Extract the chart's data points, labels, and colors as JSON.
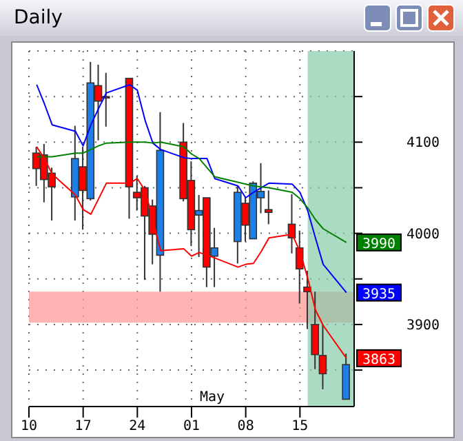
{
  "chart_data": {
    "type": "candlestick",
    "title": "Daily",
    "x": [
      "--04-11",
      "--04-12",
      "--04-13",
      "--04-16",
      "--04-17",
      "--04-18",
      "--04-19",
      "--04-20",
      "--04-23",
      "--04-24",
      "--04-25",
      "--04-26",
      "--04-27",
      "--04-30",
      "--05-01",
      "--05-02",
      "--05-03",
      "--05-04",
      "--05-07",
      "--05-08",
      "--05-09",
      "--05-10",
      "--05-11",
      "--05-14",
      "--05-15",
      "--05-16",
      "--05-17",
      "--05-18",
      "--05-21"
    ],
    "ohlc": [
      [
        4088,
        4095,
        4052,
        4071
      ],
      [
        4086,
        4098,
        4034,
        4059
      ],
      [
        4066,
        4072,
        4014,
        4051
      ],
      [
        4040,
        4118,
        4014,
        4082
      ],
      [
        4073,
        4095,
        4004,
        4047
      ],
      [
        4038,
        4188,
        4036,
        4165
      ],
      [
        4162,
        4185,
        4102,
        4145
      ],
      [
        4150,
        4176,
        4117,
        4150
      ],
      [
        4170,
        4170,
        4016,
        4051
      ],
      [
        4045,
        4063,
        4025,
        4039
      ],
      [
        4050,
        4052,
        3949,
        4019
      ],
      [
        4030,
        4037,
        3966,
        3999
      ],
      [
        3976,
        4133,
        3936,
        4091
      ],
      [
        4100,
        4121,
        4035,
        4038
      ],
      [
        4058,
        4079,
        3986,
        4004
      ],
      [
        4020,
        4042,
        3974,
        4025
      ],
      [
        4039,
        4039,
        3941,
        3963
      ],
      [
        3975,
        4006,
        3941,
        3984
      ],
      [
        3991,
        4052,
        3967,
        4045
      ],
      [
        4033,
        4040,
        3991,
        4009
      ],
      [
        3994,
        4057,
        3994,
        4055
      ],
      [
        4039,
        4077,
        4022,
        4046
      ],
      [
        4026,
        4047,
        4010,
        4023
      ],
      [
        4010,
        4043,
        3978,
        3995
      ],
      [
        3984,
        4003,
        3923,
        3961
      ],
      [
        3941,
        3959,
        3895,
        3936
      ],
      [
        3900,
        3936,
        3851,
        3867
      ],
      [
        3866,
        3900,
        3829,
        3846
      ],
      [
        3818,
        3868,
        3818,
        3856
      ]
    ],
    "colors": [
      "#ff0000",
      "#ff0000",
      "#ff0000",
      "#1e7fe8",
      "#ff0000",
      "#1e7fe8",
      "#ff0000",
      "#ff0000",
      "#ff0000",
      "#ff0000",
      "#ff0000",
      "#ff0000",
      "#1e7fe8",
      "#ff0000",
      "#ff0000",
      "#1e7fe8",
      "#ff0000",
      "#1e7fe8",
      "#1e7fe8",
      "#ff0000",
      "#1e7fe8",
      "#1e7fe8",
      "#ff0000",
      "#ff0000",
      "#ff0000",
      "#ff0000",
      "#ff0000",
      "#ff0000",
      "#1e7fe8"
    ],
    "series": [
      {
        "type": "line",
        "color": "#0000ff",
        "values": [
          4163,
          4142,
          4119,
          4112,
          4096,
          4119,
          4137,
          4154,
          4163,
          4157,
          4124,
          4099,
          4092,
          4083,
          4082,
          4082,
          4082,
          4060,
          4052,
          4039,
          4045,
          4050,
          4055,
          4054,
          4045,
          4025,
          3995,
          3966,
          3935
        ],
        "value_labels": [
          null,
          null,
          null,
          null,
          null,
          null,
          null,
          null,
          null,
          null,
          null,
          null,
          null,
          null,
          null,
          null,
          null,
          null,
          null,
          null,
          null,
          null,
          null,
          null,
          null,
          null,
          null,
          null,
          "3935"
        ]
      },
      {
        "type": "line",
        "color": "#008000",
        "values": [
          4084,
          4084,
          4084,
          4088,
          4088,
          4092,
          4096,
          4099,
          4100,
          4100,
          4100,
          4099,
          4100,
          4095,
          4087,
          4082,
          4072,
          4062,
          4056,
          4054,
          4052,
          4051,
          4050,
          4045,
          4038,
          4028,
          4015,
          4005,
          3990
        ],
        "value_labels": [
          null,
          null,
          null,
          null,
          null,
          null,
          null,
          null,
          null,
          null,
          null,
          null,
          null,
          null,
          null,
          null,
          null,
          null,
          null,
          null,
          null,
          null,
          null,
          null,
          null,
          null,
          null,
          null,
          "3990"
        ]
      },
      {
        "type": "line",
        "color": "#ff0000",
        "values": [
          4095,
          4082,
          4065,
          4042,
          4026,
          4021,
          4038,
          4055,
          4055,
          4060,
          4047,
          4015,
          3981,
          3983,
          3975,
          3979,
          3976,
          3973,
          3963,
          3966,
          3967,
          3980,
          3995,
          3999,
          3980,
          3951,
          3916,
          3899,
          3863
        ],
        "value_labels": [
          null,
          null,
          null,
          null,
          null,
          null,
          null,
          null,
          null,
          null,
          null,
          null,
          null,
          null,
          null,
          null,
          null,
          null,
          null,
          null,
          null,
          null,
          null,
          null,
          null,
          null,
          null,
          null,
          "3863"
        ]
      }
    ],
    "xlim": [
      "--04-10",
      "--05-22"
    ],
    "xticks": [
      {
        "value": "--04-10",
        "label": "10"
      },
      {
        "value": "--04-17",
        "label": "17"
      },
      {
        "value": "--04-24",
        "label": "24"
      },
      {
        "value": "--05-01",
        "label": "01"
      },
      {
        "value": "--05-08",
        "label": "08"
      },
      {
        "value": "--05-15",
        "label": "15"
      }
    ],
    "ylim": [
      3810,
      4200
    ],
    "yticks": [
      {
        "value": 3850,
        "label": null
      },
      3900,
      {
        "value": 3950,
        "label": null
      },
      4000,
      {
        "value": 4050,
        "label": null
      },
      4100,
      {
        "value": 4150,
        "label": null
      }
    ],
    "bands": [
      {
        "axis": "y",
        "from": 3902,
        "to": 3936,
        "color": "#ff9999"
      },
      {
        "axis": "x",
        "from": "--05-16",
        "to": "--05-22",
        "color": "#88cca8"
      }
    ],
    "annotations": [
      "May"
    ],
    "grid": true,
    "marker": "none"
  }
}
